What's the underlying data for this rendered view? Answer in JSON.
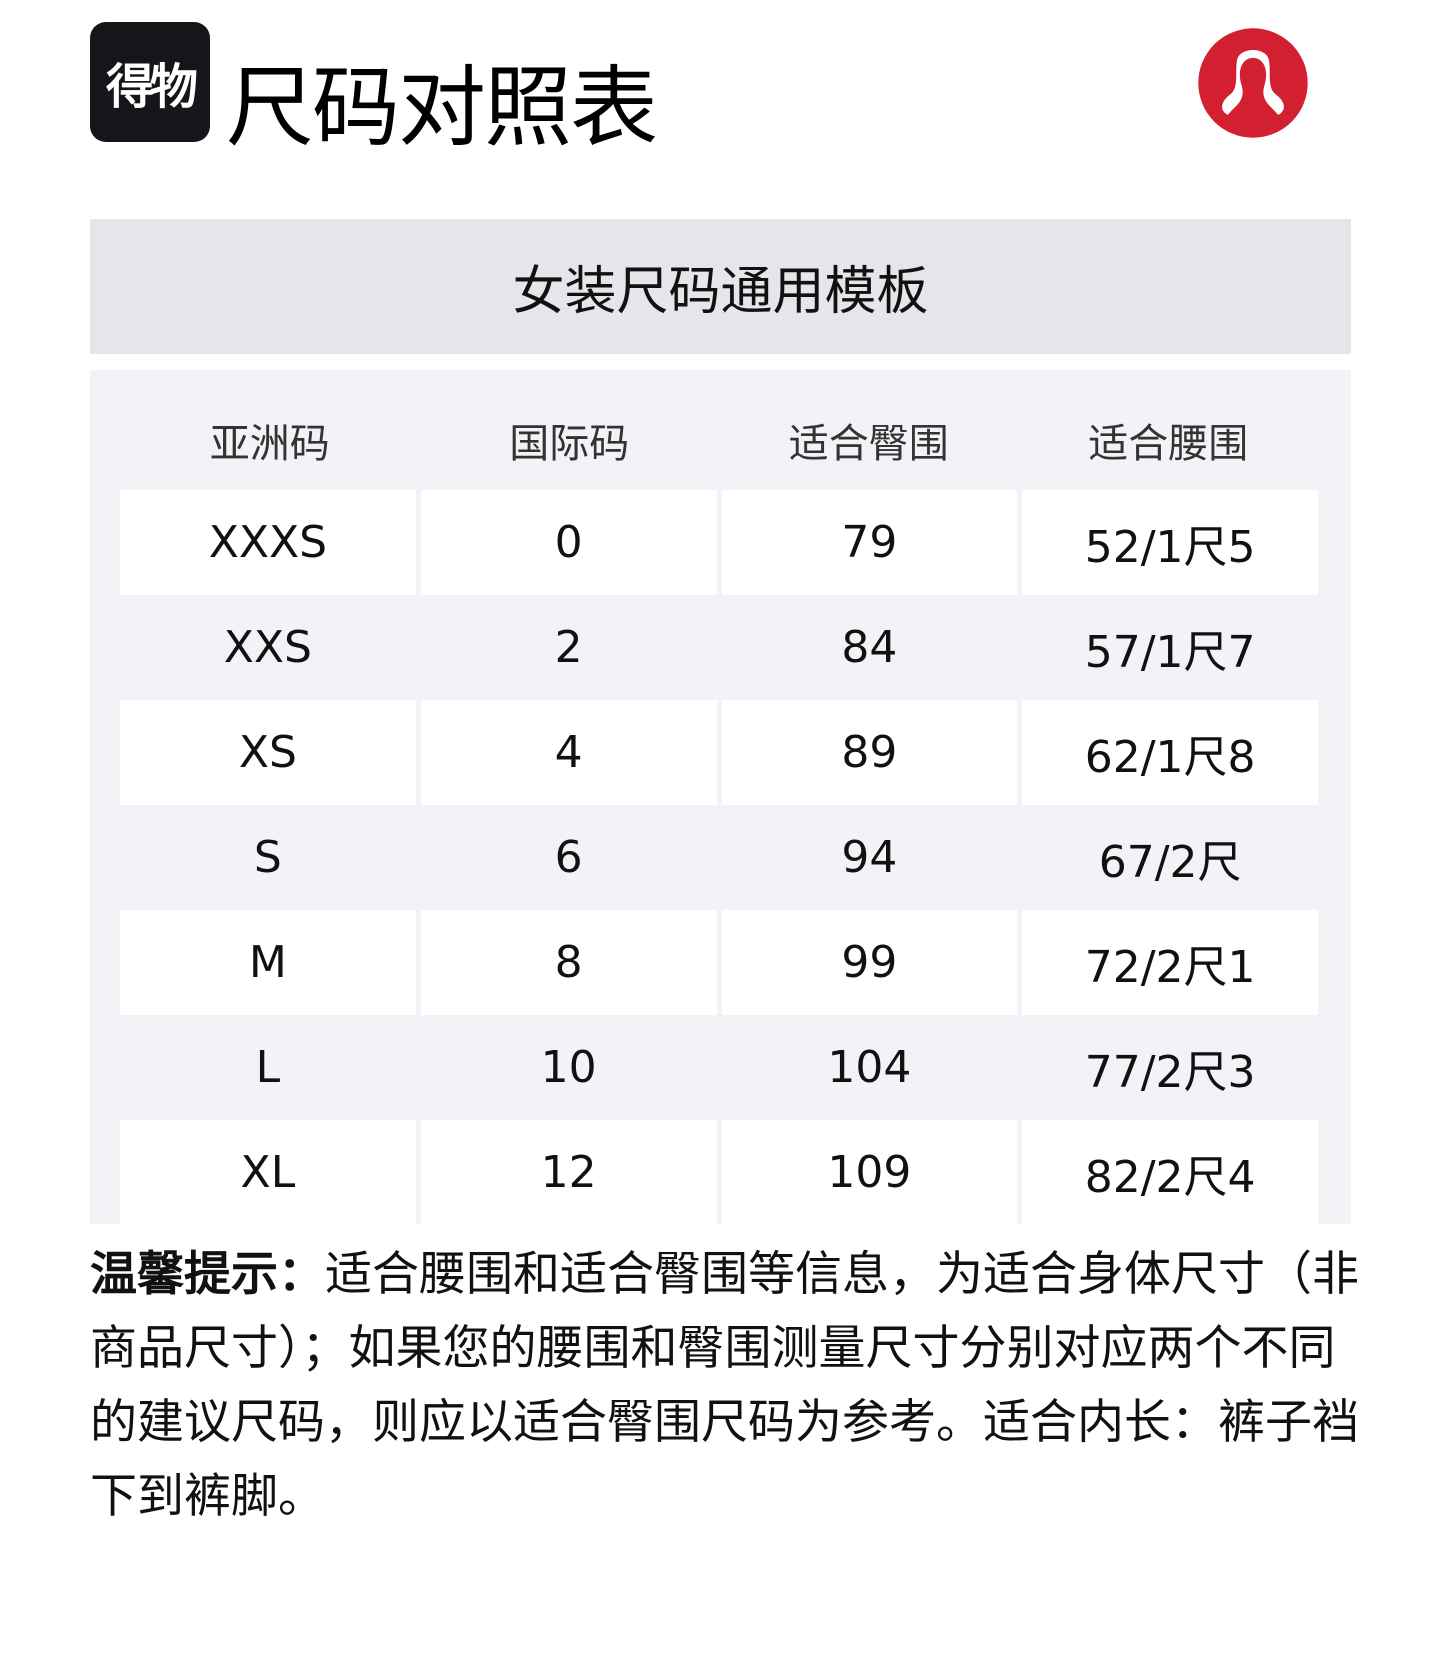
{
  "header": {
    "brand_logo_text": "得物",
    "title": "尺码对照表",
    "partner_logo": "lululemon-logo"
  },
  "table": {
    "title": "女装尺码通用模板",
    "columns": [
      "亚洲码",
      "国际码",
      "适合臀围",
      "适合腰围"
    ],
    "rows": [
      [
        "XXXS",
        "0",
        "79",
        "52/1尺5"
      ],
      [
        "XXS",
        "2",
        "84",
        "57/1尺7"
      ],
      [
        "XS",
        "4",
        "89",
        "62/1尺8"
      ],
      [
        "S",
        "6",
        "94",
        "67/2尺"
      ],
      [
        "M",
        "8",
        "99",
        "72/2尺1"
      ],
      [
        "L",
        "10",
        "104",
        "77/2尺3"
      ],
      [
        "XL",
        "12",
        "109",
        "82/2尺4"
      ]
    ]
  },
  "note": {
    "label": "温馨提示：",
    "text": "适合腰围和适合臀围等信息，为适合身体尺寸（非商品尺寸）；如果您的腰围和臀围测量尺寸分别对应两个不同的建议尺码，则应以适合臀围尺码为参考。适合内长：裤子裆下到裤脚。"
  },
  "colors": {
    "band": "#e5e5ea",
    "table_bg": "#f3f3f7",
    "logo_red": "#d22030"
  }
}
